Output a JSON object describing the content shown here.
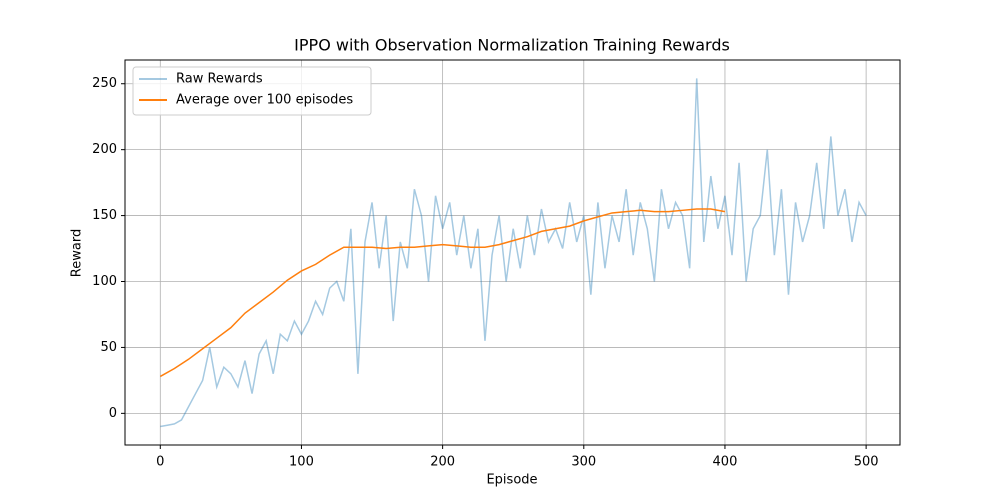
{
  "chart_data": {
    "type": "line",
    "title": "IPPO with Observation Normalization Training Rewards",
    "x_label": "Episode",
    "y_label": "Reward",
    "xlim": [
      -25,
      524
    ],
    "ylim": [
      -24,
      268
    ],
    "xticks": [
      0,
      100,
      200,
      300,
      400,
      500
    ],
    "yticks": [
      0,
      50,
      100,
      150,
      200,
      250
    ],
    "grid": true,
    "legend": "upper left",
    "series": [
      {
        "name": "Raw Rewards",
        "color": "#1f77b4",
        "alpha": 0.4,
        "x": [
          0,
          5,
          10,
          15,
          20,
          25,
          30,
          35,
          40,
          45,
          50,
          55,
          60,
          65,
          70,
          75,
          80,
          85,
          90,
          95,
          100,
          105,
          110,
          115,
          120,
          125,
          130,
          135,
          140,
          145,
          150,
          155,
          160,
          165,
          170,
          175,
          180,
          185,
          190,
          195,
          200,
          205,
          210,
          215,
          220,
          225,
          230,
          235,
          240,
          245,
          250,
          255,
          260,
          265,
          270,
          275,
          280,
          285,
          290,
          295,
          300,
          305,
          310,
          315,
          320,
          325,
          330,
          335,
          340,
          345,
          350,
          355,
          360,
          365,
          370,
          375,
          380,
          385,
          390,
          395,
          400,
          405,
          410,
          415,
          420,
          425,
          430,
          435,
          440,
          445,
          450,
          455,
          460,
          465,
          470,
          475,
          480,
          485,
          490,
          495,
          500
        ],
        "values": [
          -10,
          -9,
          -8,
          -5,
          5,
          15,
          25,
          50,
          20,
          35,
          30,
          20,
          40,
          15,
          45,
          55,
          30,
          60,
          55,
          70,
          60,
          70,
          85,
          75,
          95,
          100,
          85,
          140,
          30,
          130,
          160,
          110,
          150,
          70,
          130,
          110,
          170,
          150,
          100,
          165,
          140,
          160,
          120,
          150,
          110,
          140,
          55,
          120,
          150,
          100,
          140,
          110,
          150,
          120,
          155,
          130,
          140,
          125,
          160,
          130,
          150,
          90,
          160,
          110,
          150,
          130,
          170,
          120,
          160,
          140,
          100,
          170,
          140,
          160,
          150,
          110,
          254,
          130,
          180,
          140,
          165,
          120,
          190,
          100,
          140,
          150,
          200,
          120,
          170,
          90,
          160,
          130,
          150,
          190,
          140,
          210,
          150,
          170,
          130,
          160,
          150
        ]
      },
      {
        "name": "Average over 100 episodes",
        "color": "#ff7f0e",
        "alpha": 1,
        "x": [
          0,
          10,
          20,
          30,
          40,
          50,
          60,
          70,
          80,
          90,
          100,
          110,
          120,
          130,
          140,
          150,
          160,
          170,
          180,
          190,
          200,
          210,
          220,
          230,
          240,
          250,
          260,
          270,
          280,
          290,
          300,
          310,
          320,
          330,
          340,
          350,
          360,
          370,
          380,
          390,
          400
        ],
        "values": [
          28,
          34,
          41,
          49,
          57,
          65,
          76,
          84,
          92,
          101,
          108,
          113,
          120,
          126,
          126,
          126,
          125,
          126,
          126,
          127,
          128,
          127,
          126,
          126,
          128,
          131,
          134,
          138,
          140,
          142,
          146,
          149,
          152,
          153,
          154,
          153,
          153,
          154,
          155,
          155,
          153
        ]
      }
    ]
  }
}
